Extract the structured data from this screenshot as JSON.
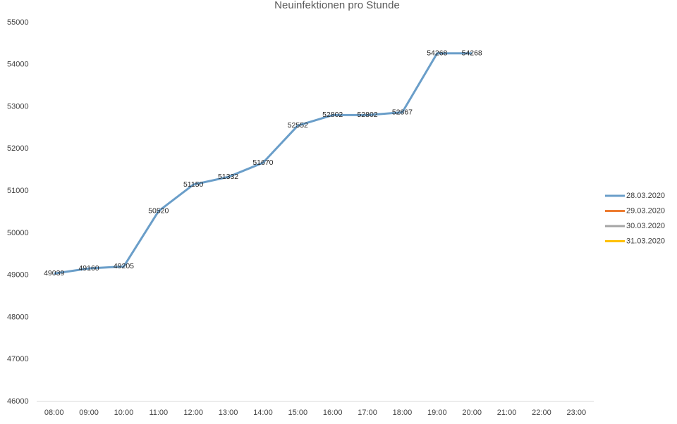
{
  "chart_data": {
    "type": "line",
    "title": "Neuinfektionen pro Stunde",
    "categories": [
      "08:00",
      "09:00",
      "10:00",
      "11:00",
      "12:00",
      "13:00",
      "14:00",
      "15:00",
      "16:00",
      "17:00",
      "18:00",
      "19:00",
      "20:00",
      "21:00",
      "22:00",
      "23:00"
    ],
    "series": [
      {
        "name": "28.03.2020",
        "color": "#6a9ec9",
        "values": [
          49039,
          49160,
          49205,
          50520,
          51150,
          51332,
          51670,
          52552,
          52802,
          52802,
          52867,
          54268,
          54268,
          null,
          null,
          null
        ]
      },
      {
        "name": "29.03.2020",
        "color": "#ed7d31",
        "values": [
          null,
          null,
          null,
          null,
          null,
          null,
          null,
          null,
          null,
          null,
          null,
          null,
          null,
          null,
          null,
          null
        ]
      },
      {
        "name": "30.03.2020",
        "color": "#a5a5a5",
        "values": [
          null,
          null,
          null,
          null,
          null,
          null,
          null,
          null,
          null,
          null,
          null,
          null,
          null,
          null,
          null,
          null
        ]
      },
      {
        "name": "31.03.2020",
        "color": "#ffc000",
        "values": [
          null,
          null,
          null,
          null,
          null,
          null,
          null,
          null,
          null,
          null,
          null,
          null,
          null,
          null,
          null,
          null
        ]
      }
    ],
    "ylim": [
      46000,
      55000
    ],
    "yticks": [
      46000,
      47000,
      48000,
      49000,
      50000,
      51000,
      52000,
      53000,
      54000,
      55000
    ],
    "data_labels": true,
    "legend": "right"
  }
}
